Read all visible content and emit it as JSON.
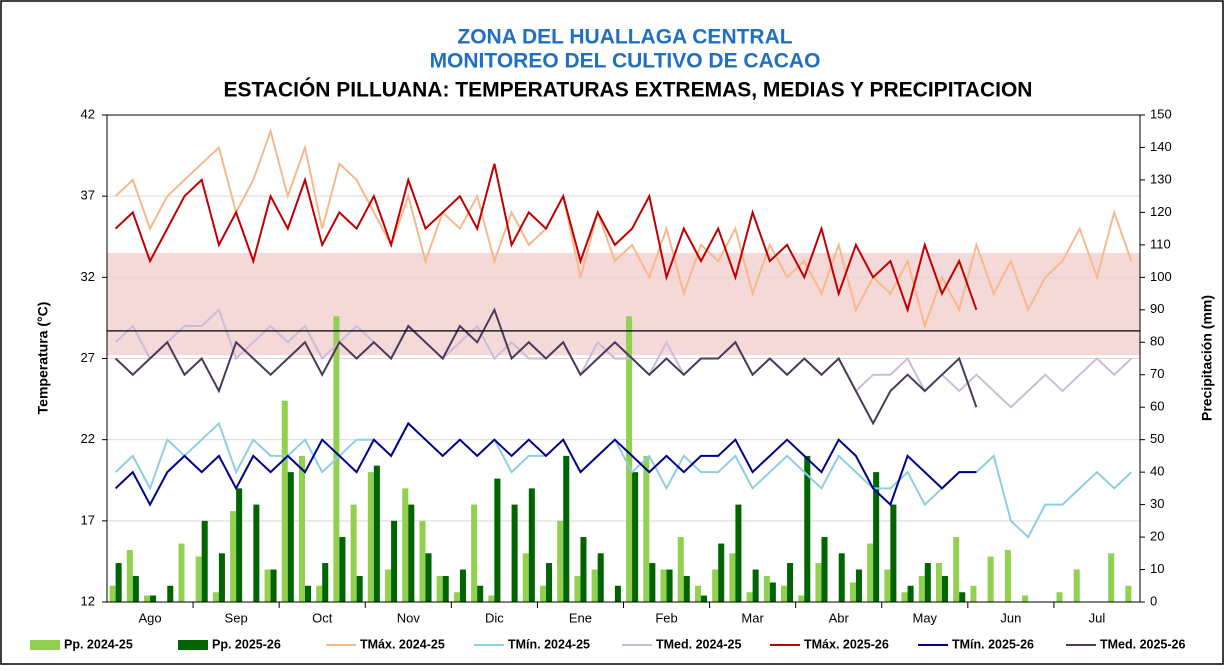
{
  "chart_data": {
    "type": "combo",
    "title": "ZONA DEL HUALLAGA CENTRAL",
    "subtitle": "MONITOREO DEL CULTIVO DE CACAO",
    "station_title": "ESTACIÓN PILLUANA: TEMPERATURAS EXTREMAS, MEDIAS Y PRECIPITACION",
    "y_label": "Temperatura (°C)",
    "y2_label": "Precipitación (mm)",
    "categories": [
      null,
      null,
      "Ago",
      null,
      null,
      null,
      null,
      "Sep",
      null,
      null,
      null,
      null,
      "Oct",
      null,
      null,
      null,
      null,
      "Nov",
      null,
      null,
      null,
      null,
      "Dic",
      null,
      null,
      null,
      null,
      "Ene",
      null,
      null,
      null,
      null,
      "Feb",
      null,
      null,
      null,
      null,
      "Mar",
      null,
      null,
      null,
      null,
      "Abr",
      null,
      null,
      null,
      null,
      "May",
      null,
      null,
      null,
      null,
      "Jun",
      null,
      null,
      null,
      null,
      "Jul",
      null,
      null
    ],
    "ylim": [
      12,
      42
    ],
    "yticks": [
      12,
      17,
      22,
      27,
      32,
      37,
      42
    ],
    "y2lim": [
      0,
      150
    ],
    "y2ticks": [
      0,
      10,
      20,
      30,
      40,
      50,
      60,
      70,
      80,
      90,
      100,
      110,
      120,
      130,
      140,
      150
    ],
    "grid": true,
    "band": [
      27.2,
      33.5
    ],
    "band_color": "#f2d0cf",
    "hline": 28.7,
    "series": [
      {
        "name": "Pp. 2024-25",
        "type": "bar",
        "axis": "y2",
        "color": "#92d050",
        "values": [
          5,
          16,
          2,
          0,
          18,
          14,
          3,
          28,
          0,
          10,
          62,
          45,
          5,
          88,
          30,
          40,
          10,
          35,
          25,
          8,
          3,
          30,
          2,
          0,
          15,
          5,
          25,
          8,
          10,
          0,
          88,
          45,
          10,
          20,
          5,
          10,
          15,
          3,
          8,
          5,
          2,
          12,
          0,
          6,
          18,
          10,
          3,
          8,
          12,
          20,
          5,
          14,
          16,
          2,
          0,
          3,
          10,
          0,
          15,
          5
        ]
      },
      {
        "name": "Pp. 2025-26",
        "type": "bar",
        "axis": "y2",
        "color": "#006400",
        "values": [
          12,
          8,
          2,
          5,
          0,
          25,
          15,
          35,
          30,
          10,
          40,
          5,
          12,
          20,
          8,
          42,
          25,
          30,
          15,
          8,
          10,
          5,
          38,
          30,
          35,
          12,
          45,
          20,
          15,
          5,
          40,
          12,
          10,
          8,
          2,
          18,
          30,
          10,
          6,
          12,
          45,
          20,
          15,
          10,
          40,
          30,
          5,
          12,
          8,
          3,
          0,
          null,
          null,
          null,
          null,
          null,
          null,
          null,
          null,
          null
        ]
      },
      {
        "name": "TMáx. 2024-25",
        "type": "line",
        "color": "#f7b98b",
        "values": [
          37,
          38,
          35,
          37,
          38,
          39,
          40,
          36,
          38,
          41,
          37,
          40,
          35,
          39,
          38,
          36,
          34,
          37,
          33,
          36,
          35,
          37,
          33,
          36,
          34,
          35,
          37,
          32,
          36,
          33,
          34,
          32,
          35,
          31,
          34,
          33,
          35,
          31,
          34,
          32,
          33,
          31,
          34,
          30,
          32,
          31,
          33,
          29,
          32,
          30,
          34,
          31,
          33,
          30,
          32,
          33,
          35,
          32,
          36,
          33
        ]
      },
      {
        "name": "TMín. 2024-25",
        "type": "line",
        "color": "#8ecfe0",
        "values": [
          20,
          21,
          19,
          22,
          21,
          22,
          23,
          20,
          22,
          21,
          21,
          22,
          20,
          21,
          22,
          22,
          21,
          23,
          22,
          21,
          22,
          21,
          22,
          20,
          21,
          21,
          22,
          20,
          21,
          22,
          20,
          21,
          19,
          21,
          20,
          20,
          21,
          19,
          20,
          21,
          20,
          19,
          21,
          20,
          19,
          19,
          20,
          18,
          19,
          20,
          20,
          21,
          17,
          16,
          18,
          18,
          19,
          20,
          19,
          20
        ]
      },
      {
        "name": "TMed. 2024-25",
        "type": "line",
        "color": "#c9bcd9",
        "values": [
          28,
          29,
          27,
          28,
          29,
          29,
          30,
          27,
          28,
          29,
          28,
          29,
          27,
          28,
          29,
          28,
          27,
          29,
          28,
          27,
          28,
          29,
          27,
          28,
          27,
          27,
          28,
          26,
          28,
          27,
          27,
          26,
          28,
          26,
          27,
          27,
          28,
          26,
          27,
          26,
          27,
          26,
          27,
          25,
          26,
          26,
          27,
          25,
          26,
          25,
          26,
          25,
          24,
          25,
          26,
          25,
          26,
          27,
          26,
          27
        ]
      },
      {
        "name": "TMáx. 2025-26",
        "type": "line",
        "color": "#c00000",
        "values": [
          35,
          36,
          33,
          35,
          37,
          38,
          34,
          36,
          33,
          37,
          35,
          38,
          34,
          36,
          35,
          37,
          34,
          38,
          35,
          36,
          37,
          35,
          39,
          34,
          36,
          35,
          37,
          33,
          36,
          34,
          35,
          37,
          32,
          35,
          33,
          35,
          32,
          36,
          33,
          34,
          32,
          35,
          31,
          34,
          32,
          33,
          30,
          34,
          31,
          33,
          30,
          null,
          null,
          null,
          null,
          null,
          null,
          null,
          null,
          null
        ]
      },
      {
        "name": "TMín. 2025-26",
        "type": "line",
        "color": "#00008b",
        "values": [
          19,
          20,
          18,
          20,
          21,
          20,
          21,
          19,
          21,
          20,
          21,
          20,
          22,
          21,
          20,
          22,
          21,
          23,
          22,
          21,
          22,
          21,
          22,
          21,
          22,
          21,
          22,
          20,
          21,
          22,
          21,
          20,
          21,
          20,
          21,
          21,
          22,
          20,
          21,
          22,
          21,
          20,
          22,
          21,
          19,
          18,
          21,
          20,
          19,
          20,
          20,
          null,
          null,
          null,
          null,
          null,
          null,
          null,
          null,
          null
        ]
      },
      {
        "name": "TMed. 2025-26",
        "type": "line",
        "color": "#4b3a5a",
        "values": [
          27,
          26,
          27,
          28,
          26,
          27,
          25,
          28,
          27,
          26,
          27,
          28,
          26,
          28,
          27,
          28,
          27,
          29,
          28,
          27,
          29,
          28,
          30,
          27,
          28,
          27,
          28,
          26,
          27,
          28,
          27,
          26,
          27,
          26,
          27,
          27,
          28,
          26,
          27,
          26,
          27,
          26,
          27,
          25,
          23,
          25,
          26,
          25,
          26,
          27,
          24,
          null,
          null,
          null,
          null,
          null,
          null,
          null,
          null,
          null
        ]
      }
    ]
  }
}
